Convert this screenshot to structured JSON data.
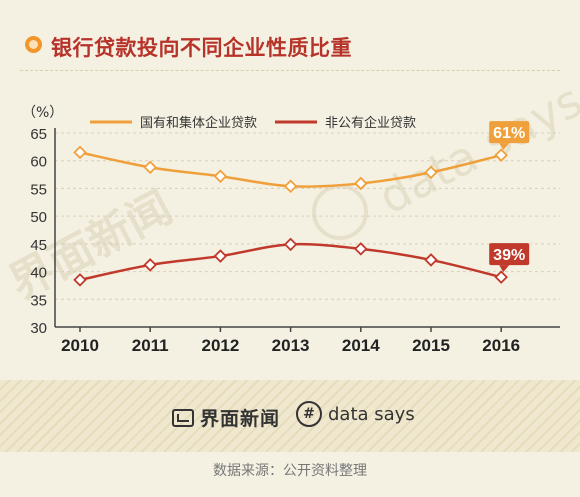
{
  "title": "银行贷款投向不同企业性质比重",
  "source": "数据来源：公开资料整理",
  "footer": {
    "logo_left": "界面新闻",
    "logo_right": "data says",
    "logo_right_icon": "hash-icon"
  },
  "watermarks": {
    "left": "界面新闻",
    "right": "data says"
  },
  "colors": {
    "orange": "#f0a03a",
    "red": "#c0392b",
    "title": "#b7332a",
    "grid": "#d8d0b8"
  },
  "chart_data": {
    "type": "line",
    "title": "",
    "ylabel": "（%）",
    "xlabel": "",
    "x": [
      "2010",
      "2011",
      "2012",
      "2013",
      "2014",
      "2015",
      "2016"
    ],
    "yticks": [
      30,
      35,
      40,
      45,
      50,
      55,
      60,
      65
    ],
    "ylim": [
      30,
      65
    ],
    "legend_position": "top",
    "series": [
      {
        "name": "国有和集体企业贷款",
        "color": "#f0a03a",
        "values": [
          61.5,
          58.8,
          57.2,
          55.4,
          55.9,
          57.9,
          61.0
        ],
        "end_label": "61%"
      },
      {
        "name": "非公有企业贷款",
        "color": "#c0392b",
        "values": [
          38.5,
          41.2,
          42.8,
          44.9,
          44.1,
          42.1,
          39.0
        ],
        "end_label": "39%"
      }
    ]
  }
}
